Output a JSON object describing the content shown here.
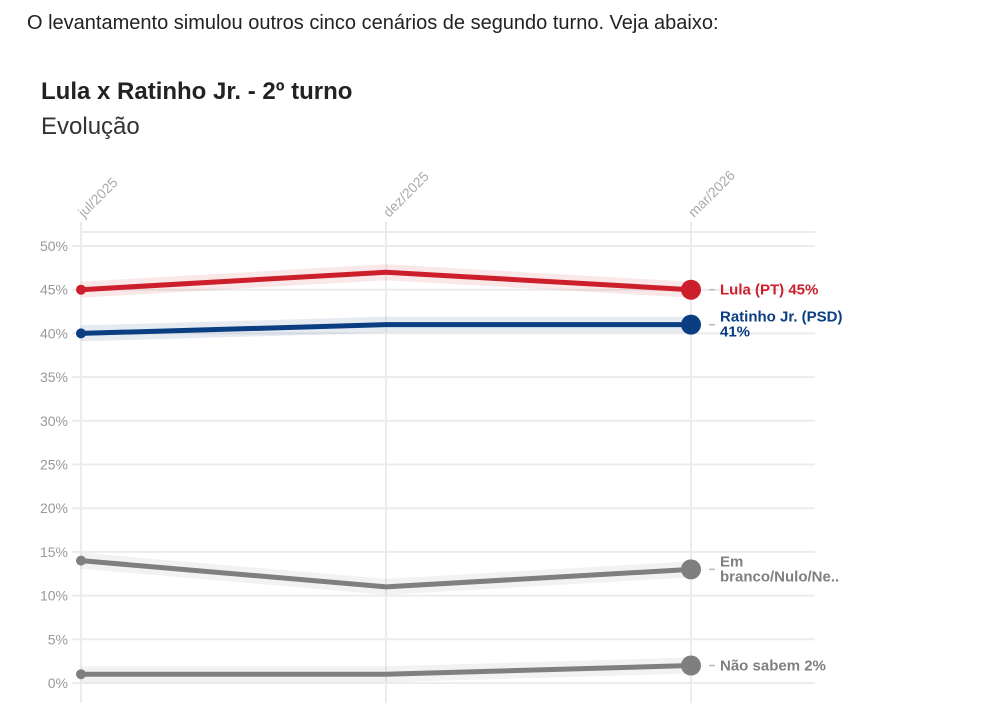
{
  "intro_text": "O levantamento simulou outros cinco cenários de segundo turno. Veja abaixo:",
  "chart_data": {
    "type": "line",
    "title": "Lula x Ratinho Jr. - 2º turno",
    "subtitle": "Evolução",
    "x": [
      "jul/2025",
      "dez/2025",
      "mar/2026"
    ],
    "yticks": [
      "0%",
      "5%",
      "10%",
      "15%",
      "20%",
      "25%",
      "30%",
      "35%",
      "40%",
      "45%",
      "50%"
    ],
    "ylim": [
      0,
      50
    ],
    "grid": true,
    "series": [
      {
        "name": "Lula (PT)",
        "label": "Lula (PT) 45%",
        "values": [
          45,
          47,
          45
        ],
        "color": "#cc1f2b"
      },
      {
        "name": "Ratinho Jr. (PSD)",
        "label": [
          "Ratinho Jr. (PSD)",
          "41%"
        ],
        "values": [
          40,
          41,
          41
        ],
        "color": "#0a3d82"
      },
      {
        "name": "Em branco/Nulo/Ne..",
        "label": [
          "Em",
          "branco/Nulo/Ne.."
        ],
        "values": [
          14,
          11,
          13
        ],
        "color": "#7f7f7f"
      },
      {
        "name": "Não sabem",
        "label": "Não sabem 2%",
        "values": [
          1,
          1,
          2
        ],
        "color": "#7f7f7f"
      }
    ]
  }
}
